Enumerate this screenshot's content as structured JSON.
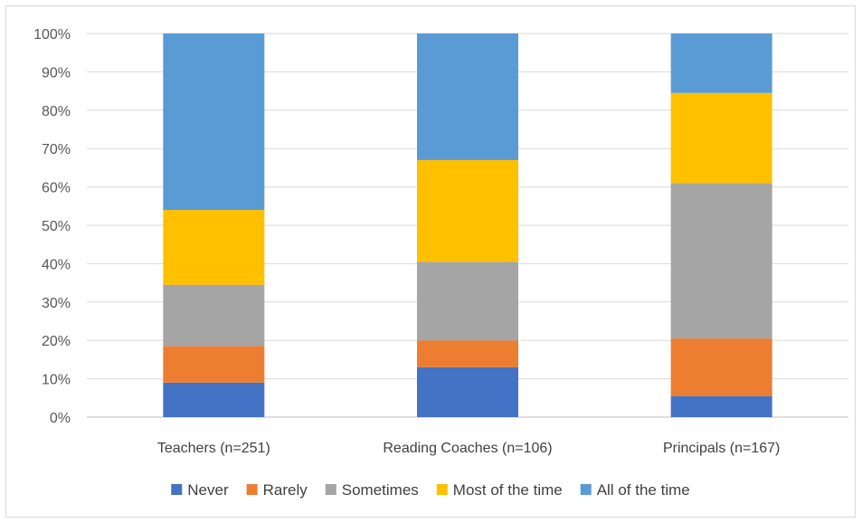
{
  "chart_data": {
    "type": "bar",
    "stacked": true,
    "percent": true,
    "title": "",
    "xlabel": "",
    "ylabel": "",
    "ylim": [
      0,
      100
    ],
    "y_ticks": [
      "0%",
      "10%",
      "20%",
      "30%",
      "40%",
      "50%",
      "60%",
      "70%",
      "80%",
      "90%",
      "100%"
    ],
    "grid": true,
    "legend_position": "bottom",
    "categories": [
      "Teachers (n=251)",
      "Reading Coaches (n=106)",
      "Principals (n=167)"
    ],
    "series": [
      {
        "name": "Never",
        "color": "#4472c4",
        "values": [
          9,
          13,
          5.5
        ]
      },
      {
        "name": "Rarely",
        "color": "#ed7d31",
        "values": [
          9.5,
          7,
          15
        ]
      },
      {
        "name": "Sometimes",
        "color": "#a5a5a5",
        "values": [
          16,
          20.5,
          40.5
        ]
      },
      {
        "name": "Most of the time",
        "color": "#ffc000",
        "values": [
          19.5,
          26.5,
          23.5
        ]
      },
      {
        "name": "All of the time",
        "color": "#5b9bd5",
        "values": [
          46,
          33,
          15.5
        ]
      }
    ]
  }
}
